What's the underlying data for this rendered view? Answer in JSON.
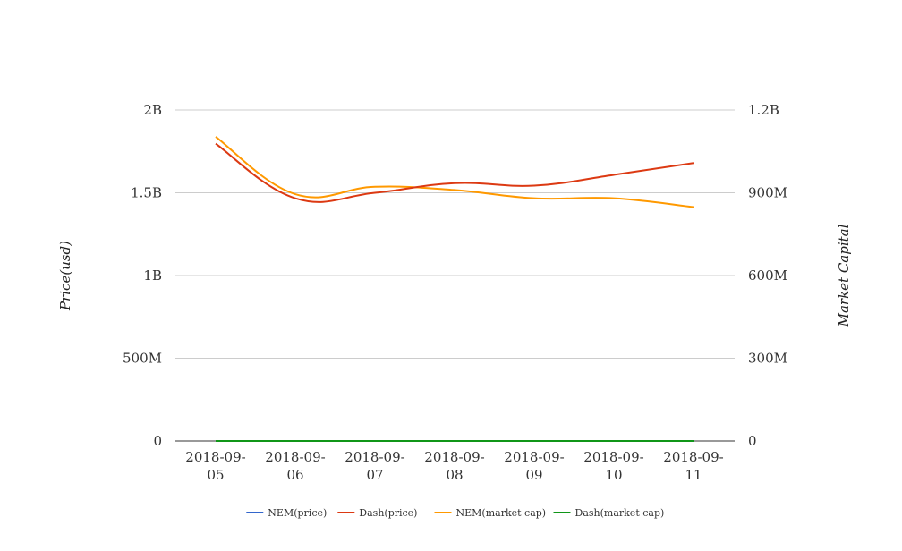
{
  "chart_data": {
    "type": "line",
    "categories": [
      "2018-09-05",
      "2018-09-06",
      "2018-09-07",
      "2018-09-08",
      "2018-09-09",
      "2018-09-10",
      "2018-09-11"
    ],
    "category_lines": [
      [
        "2018-09-",
        "05"
      ],
      [
        "2018-09-",
        "06"
      ],
      [
        "2018-09-",
        "07"
      ],
      [
        "2018-09-",
        "08"
      ],
      [
        "2018-09-",
        "09"
      ],
      [
        "2018-09-",
        "10"
      ],
      [
        "2018-09-",
        "11"
      ]
    ],
    "ylabel_left": "Price(usd)",
    "ylabel_right": "Market Capital",
    "ylim_left": [
      0,
      2000000000
    ],
    "ylim_right": [
      0,
      1200000000
    ],
    "yticks_left": [
      {
        "value": 0,
        "label": "0"
      },
      {
        "value": 500000000,
        "label": "500M"
      },
      {
        "value": 1000000000,
        "label": "1B"
      },
      {
        "value": 1500000000,
        "label": "1.5B"
      },
      {
        "value": 2000000000,
        "label": "2B"
      }
    ],
    "yticks_right": [
      {
        "value": 0,
        "label": "0"
      },
      {
        "value": 300000000,
        "label": "300M"
      },
      {
        "value": 600000000,
        "label": "600M"
      },
      {
        "value": 900000000,
        "label": "900M"
      },
      {
        "value": 1200000000,
        "label": "1.2B"
      }
    ],
    "grid": true,
    "legend_position": "bottom",
    "series": [
      {
        "name": "NEM(price)",
        "axis": "left",
        "color": "#3366cc",
        "values": [
          0.11,
          0.09,
          0.09,
          0.09,
          0.09,
          0.09,
          0.09
        ]
      },
      {
        "name": "Dash(price)",
        "axis": "right",
        "color": "#dc3912",
        "values": [
          1078000000,
          880000000,
          900000000,
          935000000,
          926000000,
          965000000,
          1008000000
        ]
      },
      {
        "name": "NEM(market cap)",
        "axis": "right",
        "color": "#ff9900",
        "values": [
          1103000000,
          895000000,
          922000000,
          910000000,
          880000000,
          880000000,
          848000000
        ]
      },
      {
        "name": "Dash(market cap)",
        "axis": "left",
        "color": "#109618",
        "values": [
          0.0,
          0.0,
          0.0,
          0.0,
          0.0,
          0.0,
          0.0
        ]
      }
    ]
  }
}
